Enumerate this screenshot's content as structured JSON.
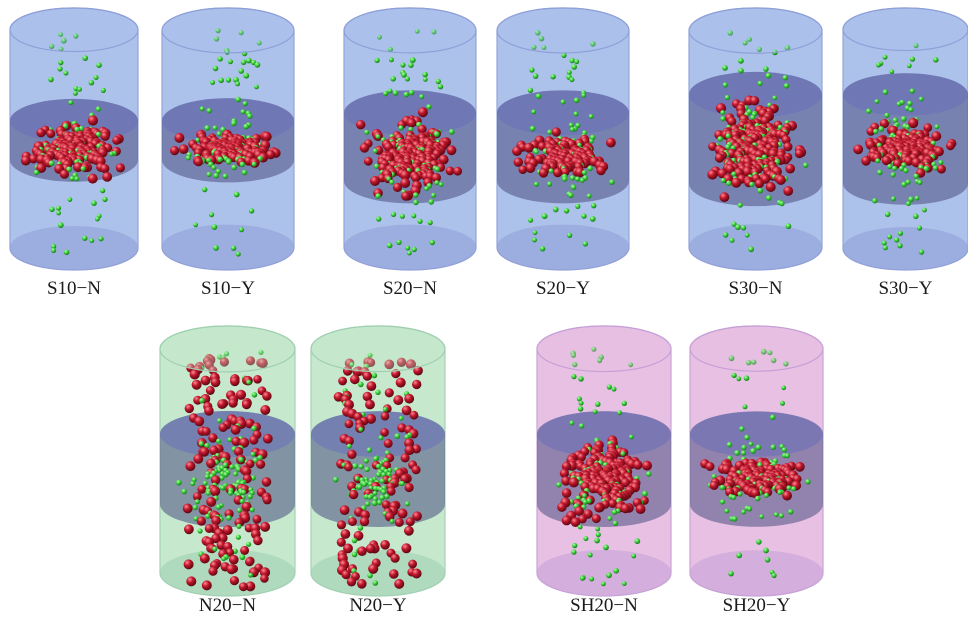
{
  "panels": [
    {
      "label": "S10−N",
      "tint": "blue",
      "layer": "thin",
      "dist": "cluster",
      "red": 150,
      "green": 120
    },
    {
      "label": "S10−Y",
      "tint": "blue",
      "layer": "thin",
      "dist": "flat",
      "red": 140,
      "green": 110
    },
    {
      "label": "S20−N",
      "tint": "blue",
      "layer": "medium",
      "dist": "cluster",
      "red": 170,
      "green": 120
    },
    {
      "label": "S20−Y",
      "tint": "blue",
      "layer": "medium",
      "dist": "flat",
      "red": 120,
      "green": 100
    },
    {
      "label": "S30−N",
      "tint": "blue",
      "layer": "thick",
      "dist": "cluster",
      "red": 190,
      "green": 140
    },
    {
      "label": "S30−Y",
      "tint": "blue",
      "layer": "thick",
      "dist": "flat",
      "red": 140,
      "green": 110
    },
    {
      "label": "N20−N",
      "tint": "green",
      "layer": "medium",
      "dist": "spread",
      "red": 150,
      "green": 120
    },
    {
      "label": "N20−Y",
      "tint": "green",
      "layer": "medium",
      "dist": "spread",
      "red": 120,
      "green": 100
    },
    {
      "label": "SH20−N",
      "tint": "purple",
      "layer": "medium",
      "dist": "cluster",
      "red": 170,
      "green": 110
    },
    {
      "label": "SH20−Y",
      "tint": "purple",
      "layer": "medium",
      "dist": "flat",
      "red": 130,
      "green": 100
    }
  ],
  "colors": {
    "blue_body": "#a9bfea",
    "blue_edge": "#8f9fd8",
    "green_body": "#c4e8cc",
    "green_edge": "#9fcfb0",
    "purple_body": "#e6bde3",
    "purple_edge": "#c6a0d6",
    "layer_band": "#4a4f82",
    "red_particle": "#c0172c",
    "green_particle": "#3ecf3e"
  }
}
